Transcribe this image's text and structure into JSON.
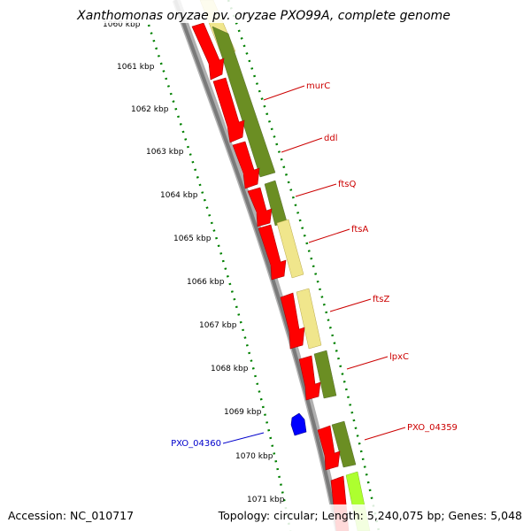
{
  "title": "Xanthomonas oryzae pv. oryzae PXO99A, complete genome",
  "footer": {
    "accession": "Accession: NC_010717",
    "summary": "Topology: circular; Length: 5,240,075 bp; Genes: 5,048"
  },
  "ruler": {
    "partial_top_label": "1060 kbp",
    "ticks": [
      "1061 kbp",
      "1062 kbp",
      "1063 kbp",
      "1064 kbp",
      "1065 kbp",
      "1066 kbp",
      "1067 kbp",
      "1068 kbp",
      "1069 kbp",
      "1070 kbp",
      "1071 kbp"
    ]
  },
  "genes": {
    "forward_labeled": [
      {
        "name": "murC"
      },
      {
        "name": "ddl"
      },
      {
        "name": "ftsQ"
      },
      {
        "name": "ftsA"
      },
      {
        "name": "ftsZ"
      },
      {
        "name": "lpxC"
      },
      {
        "name": "PXO_04359"
      }
    ],
    "reverse_labeled": [
      {
        "name": "PXO_04360"
      }
    ]
  },
  "colors": {
    "cds_forward": "#ff0000",
    "cds_reverse": "#0000ff",
    "cog_dark_olive": "#6b8e23",
    "cog_pale_yellow": "#f0e68c",
    "cog_lime": "#adff2f",
    "backbone": "#808080",
    "tick_dots": "#008000",
    "label_forward": "#cc0000",
    "label_reverse": "#0000cc"
  }
}
